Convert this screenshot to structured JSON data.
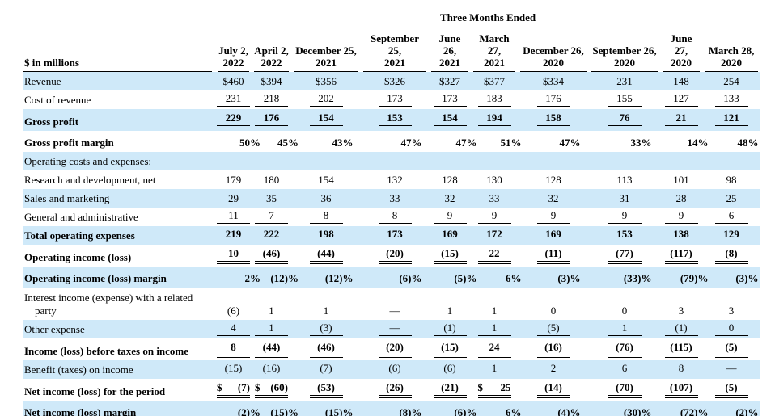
{
  "table_title": "Three Months Ended",
  "unit_label": "$ in millions",
  "colors": {
    "highlight_row": "#cfe9f9",
    "rule": "#000000",
    "text": "#000000"
  },
  "columns": [
    {
      "month": "July 2,",
      "year": "2022"
    },
    {
      "month": "April 2,",
      "year": "2022"
    },
    {
      "month": "December 25,",
      "year": "2021"
    },
    {
      "month": "September 25,",
      "year": "2021"
    },
    {
      "month": "June 26,",
      "year": "2021"
    },
    {
      "month": "March 27,",
      "year": "2021"
    },
    {
      "month": "December 26,",
      "year": "2020"
    },
    {
      "month": "September 26,",
      "year": "2020"
    },
    {
      "month": "June 27,",
      "year": "2020"
    },
    {
      "month": "March 28,",
      "year": "2020"
    }
  ],
  "rows": [
    {
      "label": "Revenue",
      "bg": "blue",
      "bold": false,
      "underline": "none",
      "percent": false,
      "cells": [
        "$460",
        "$394",
        "$356",
        "$326",
        "$327",
        "$377",
        "$334",
        "231",
        "148",
        "254"
      ]
    },
    {
      "label": "Cost of revenue",
      "bg": "white",
      "bold": false,
      "underline": "single",
      "percent": false,
      "cells": [
        "231",
        "218",
        "202",
        "173",
        "173",
        "183",
        "176",
        "155",
        "127",
        "133"
      ]
    },
    {
      "label": "Gross profit",
      "bg": "blue",
      "bold": true,
      "underline": "double",
      "percent": false,
      "cells": [
        "229",
        "176",
        "154",
        "153",
        "154",
        "194",
        "158",
        "76",
        "21",
        "121"
      ]
    },
    {
      "label": "Gross profit margin",
      "bg": "white",
      "bold": true,
      "underline": "none",
      "percent": true,
      "cells": [
        "50%",
        "45%",
        "43%",
        "47%",
        "47%",
        "51%",
        "47%",
        "33%",
        "14%",
        "48%"
      ]
    },
    {
      "label": "Operating costs and expenses:",
      "bg": "blue",
      "bold": false,
      "underline": "none",
      "percent": false,
      "cells": [
        "",
        "",
        "",
        "",
        "",
        "",
        "",
        "",
        "",
        ""
      ]
    },
    {
      "label": "Research and development, net",
      "bg": "white",
      "bold": false,
      "underline": "none",
      "percent": false,
      "cells": [
        "179",
        "180",
        "154",
        "132",
        "128",
        "130",
        "128",
        "113",
        "101",
        "98"
      ]
    },
    {
      "label": "Sales and marketing",
      "bg": "blue",
      "bold": false,
      "underline": "none",
      "percent": false,
      "cells": [
        "29",
        "35",
        "36",
        "33",
        "32",
        "33",
        "32",
        "31",
        "28",
        "25"
      ]
    },
    {
      "label": "General and administrative",
      "bg": "white",
      "bold": false,
      "underline": "single",
      "percent": false,
      "cells": [
        "11",
        "7",
        "8",
        "8",
        "9",
        "9",
        "9",
        "9",
        "9",
        "6"
      ]
    },
    {
      "label": "Total operating expenses",
      "bg": "blue",
      "bold": true,
      "underline": "single",
      "percent": false,
      "cells": [
        "219",
        "222",
        "198",
        "173",
        "169",
        "172",
        "169",
        "153",
        "138",
        "129"
      ]
    },
    {
      "label": "Operating income (loss)",
      "bg": "white",
      "bold": true,
      "underline": "double",
      "percent": false,
      "cells": [
        "10",
        "(46)",
        "(44)",
        "(20)",
        "(15)",
        "22",
        "(11)",
        "(77)",
        "(117)",
        "(8)"
      ]
    },
    {
      "label": "Operating income (loss) margin",
      "bg": "blue",
      "bold": true,
      "underline": "none",
      "percent": true,
      "cells": [
        "2%",
        "(12)%",
        "(12)%",
        "(6)%",
        "(5)%",
        "6%",
        "(3)%",
        "(33)%",
        "(79)%",
        "(3)%"
      ]
    },
    {
      "label": [
        "Interest income (expense) with a related",
        "party"
      ],
      "bg": "white",
      "bold": false,
      "underline": "none",
      "percent": false,
      "cells": [
        "(6)",
        "1",
        "1",
        "—",
        "1",
        "1",
        "0",
        "0",
        "3",
        "3"
      ]
    },
    {
      "label": "Other expense",
      "bg": "blue",
      "bold": false,
      "underline": "single",
      "percent": false,
      "cells": [
        "4",
        "1",
        "(3)",
        "—",
        "(1)",
        "1",
        "(5)",
        "1",
        "(1)",
        "0"
      ]
    },
    {
      "label": "Income (loss) before taxes on income",
      "bg": "white",
      "bold": true,
      "underline": "double",
      "percent": false,
      "cells": [
        "8",
        "(44)",
        "(46)",
        "(20)",
        "(15)",
        "24",
        "(16)",
        "(76)",
        "(115)",
        "(5)"
      ]
    },
    {
      "label": "Benefit (taxes) on income",
      "bg": "blue",
      "bold": false,
      "underline": "single",
      "percent": false,
      "cells": [
        "(15)",
        "(16)",
        "(7)",
        "(6)",
        "(6)",
        "1",
        "2",
        "6",
        "8",
        "—"
      ]
    },
    {
      "label": "Net income (loss) for the period",
      "bg": "white",
      "bold": true,
      "underline": "double",
      "percent": false,
      "cells": [
        "$ (7)",
        "$ (60)",
        "(53)",
        "(26)",
        "(21)",
        "$ 25",
        "(14)",
        "(70)",
        "(107)",
        "(5)"
      ]
    },
    {
      "label": "Net income (loss) margin",
      "bg": "blue",
      "bold": true,
      "underline": "none",
      "percent": true,
      "cells": [
        "(2)%",
        "(15)%",
        "(15)%",
        "(8)%",
        "(6)%",
        "6%",
        "(4)%",
        "(30)%",
        "(72)%",
        "(2)%"
      ]
    }
  ]
}
